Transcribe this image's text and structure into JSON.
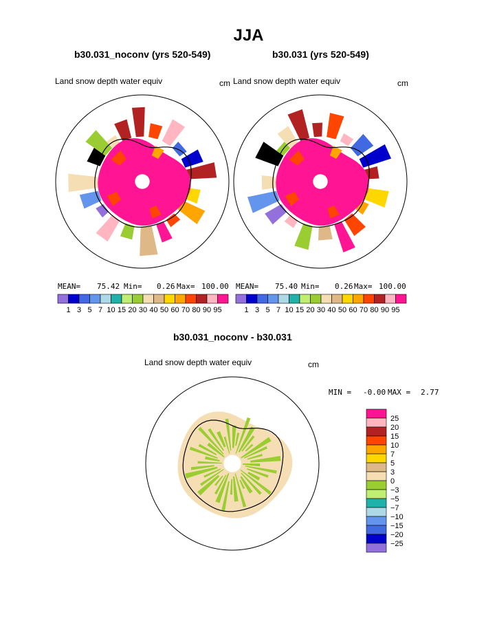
{
  "header": {
    "title": "JJA"
  },
  "panels": [
    {
      "title": "b30.031_noconv (yrs 520-549)",
      "variable": "Land snow depth water equiv",
      "units": "cm",
      "stats": {
        "mean_label": "MEAN=",
        "mean": "75.42",
        "min_label": "Min=",
        "min": "0.26",
        "max_label": "Max=",
        "max": "100.00"
      }
    },
    {
      "title": "b30.031 (yrs 520-549)",
      "variable": "Land snow depth water equiv",
      "units": "cm",
      "stats": {
        "mean_label": "MEAN=",
        "mean": "75.40",
        "min_label": "Min=",
        "min": "0.26",
        "max_label": "Max=",
        "max": "100.00"
      }
    },
    {
      "title": "b30.031_noconv - b30.031",
      "variable": "Land snow depth water equiv",
      "units": "cm",
      "stats": {
        "min_label": "MIN =",
        "min": "-0.00",
        "max_label": "MAX =",
        "max": "2.77"
      }
    }
  ],
  "chart_data": [
    {
      "type": "heatmap",
      "title": "b30.031_noconv (yrs 520-549)",
      "subtitle": "Land snow depth water equiv",
      "units": "cm",
      "projection": "south polar stereographic",
      "colorbar": {
        "levels": [
          "1",
          "3",
          "5",
          "7",
          "10",
          "15",
          "20",
          "30",
          "40",
          "50",
          "60",
          "70",
          "80",
          "90",
          "95"
        ],
        "colors": [
          "#9370db",
          "#0000cd",
          "#4169e1",
          "#6495ed",
          "#add8e6",
          "#20b2aa",
          "#c0ee70",
          "#9acd32",
          "#f5deb3",
          "#deb887",
          "#ffd700",
          "#ffa500",
          "#ff4500",
          "#b22222",
          "#ffb6c1",
          "#ff1493"
        ]
      },
      "summary": {
        "mean": 75.42,
        "min": 0.26,
        "max": 100.0
      }
    },
    {
      "type": "heatmap",
      "title": "b30.031 (yrs 520-549)",
      "subtitle": "Land snow depth water equiv",
      "units": "cm",
      "projection": "south polar stereographic",
      "colorbar": {
        "levels": [
          "1",
          "3",
          "5",
          "7",
          "10",
          "15",
          "20",
          "30",
          "40",
          "50",
          "60",
          "70",
          "80",
          "90",
          "95"
        ],
        "colors": [
          "#9370db",
          "#0000cd",
          "#4169e1",
          "#6495ed",
          "#add8e6",
          "#20b2aa",
          "#c0ee70",
          "#9acd32",
          "#f5deb3",
          "#deb887",
          "#ffd700",
          "#ffa500",
          "#ff4500",
          "#b22222",
          "#ffb6c1",
          "#ff1493"
        ]
      },
      "summary": {
        "mean": 75.4,
        "min": 0.26,
        "max": 100.0
      }
    },
    {
      "type": "heatmap",
      "title": "b30.031_noconv - b30.031",
      "subtitle": "Land snow depth water equiv",
      "units": "cm",
      "projection": "south polar stereographic",
      "colorbar": {
        "orientation": "vertical",
        "levels": [
          "25",
          "20",
          "15",
          "10",
          "7",
          "5",
          "3",
          "0",
          "−3",
          "−5",
          "−7",
          "−10",
          "−15",
          "−20",
          "−25"
        ],
        "colors": [
          "#ff1493",
          "#ffb6c1",
          "#b22222",
          "#ff4500",
          "#ffa500",
          "#ffd700",
          "#deb887",
          "#f5deb3",
          "#9acd32",
          "#c0ee70",
          "#20b2aa",
          "#add8e6",
          "#6495ed",
          "#4169e1",
          "#0000cd",
          "#9370db"
        ]
      },
      "summary": {
        "min": -0.0,
        "max": 2.77
      }
    }
  ]
}
